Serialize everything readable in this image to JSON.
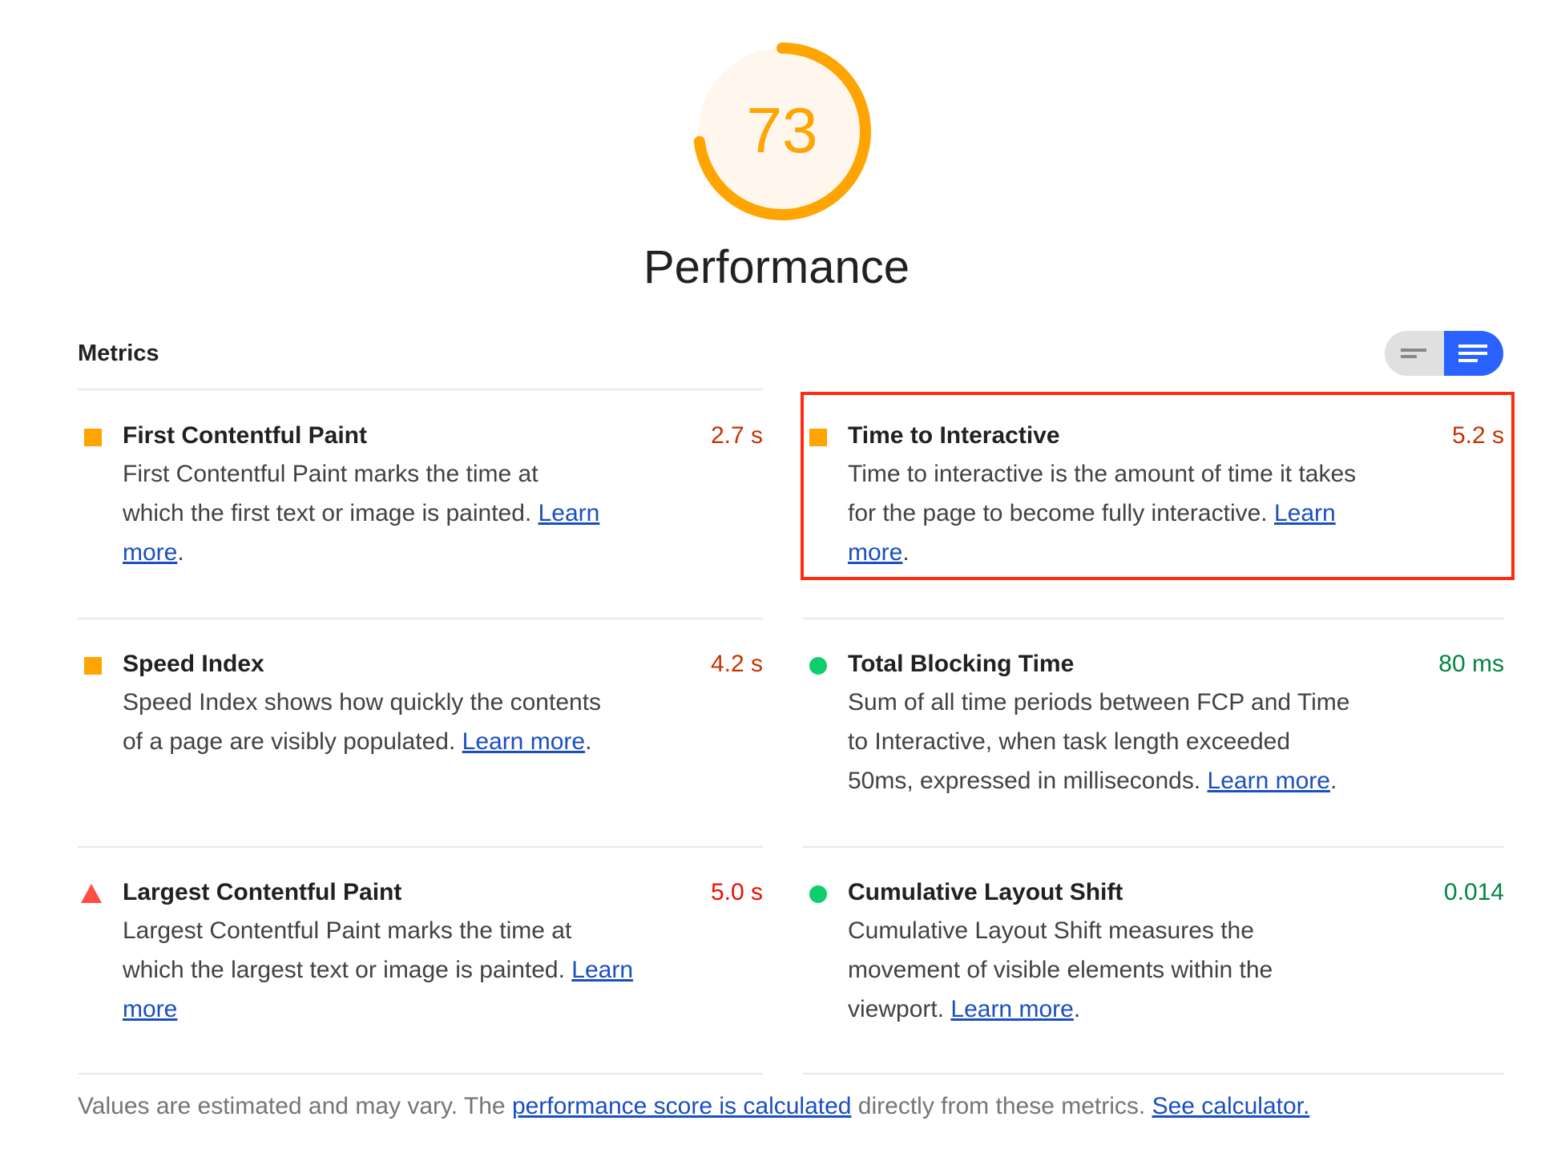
{
  "gauge": {
    "score": 73,
    "fraction": 0.73,
    "color": "#ffa400",
    "bg_color": "#fff7ed"
  },
  "category_title": "Performance",
  "metrics_header": {
    "title": "Metrics",
    "toggle": {
      "options": [
        "collapsed-view",
        "expanded-view"
      ],
      "selected": "expanded-view"
    }
  },
  "metrics": [
    {
      "id": "fcp",
      "title": "First Contentful Paint",
      "value": "2.7 s",
      "rating": "average",
      "icon": "orange-square-icon",
      "desc": "First Contentful Paint marks the time at which the first text or image is painted.",
      "link": "Learn more",
      "after": "."
    },
    {
      "id": "tti",
      "title": "Time to Interactive",
      "value": "5.2 s",
      "rating": "average",
      "icon": "orange-square-icon",
      "desc": "Time to interactive is the amount of time it takes for the page to become fully interactive.",
      "link": "Learn more",
      "after": ".",
      "highlighted": true
    },
    {
      "id": "si",
      "title": "Speed Index",
      "value": "4.2 s",
      "rating": "average",
      "icon": "orange-square-icon",
      "desc": "Speed Index shows how quickly the contents of a page are visibly populated.",
      "link": "Learn more",
      "after": "."
    },
    {
      "id": "tbt",
      "title": "Total Blocking Time",
      "value": "80 ms",
      "rating": "pass",
      "icon": "green-circle-icon",
      "desc": "Sum of all time periods between FCP and Time to Interactive, when task length exceeded 50ms, expressed in milliseconds.",
      "link": "Learn more",
      "after": "."
    },
    {
      "id": "lcp",
      "title": "Largest Contentful Paint",
      "value": "5.0 s",
      "rating": "fail",
      "icon": "red-triangle-icon",
      "desc": "Largest Contentful Paint marks the time at which the largest text or image is painted.",
      "link": "Learn more",
      "after": ""
    },
    {
      "id": "cls",
      "title": "Cumulative Layout Shift",
      "value": "0.014",
      "rating": "pass",
      "icon": "green-circle-icon",
      "desc": "Cumulative Layout Shift measures the movement of visible elements within the viewport.",
      "link": "Learn more",
      "after": "."
    }
  ],
  "colors": {
    "average": "#c33300",
    "pass": "#018642",
    "fail": "#eb0f00",
    "highlight": "#ff2a0f",
    "toggle_active": "#2962ff"
  },
  "footer": {
    "text1": "Values are estimated and may vary. The ",
    "link1": "performance score is calculated",
    "text2": " directly from these metrics. ",
    "link2": "See calculator."
  }
}
